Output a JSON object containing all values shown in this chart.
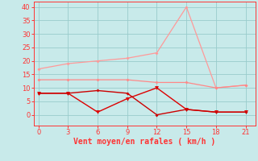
{
  "x": [
    0,
    3,
    6,
    9,
    12,
    15,
    18,
    21
  ],
  "line1_y": [
    17,
    19,
    20,
    21,
    23,
    40,
    10,
    11
  ],
  "line2_y": [
    13,
    13,
    13,
    13,
    12,
    12,
    10,
    11
  ],
  "line3_y": [
    8,
    8,
    1,
    6,
    10,
    2,
    1,
    1
  ],
  "line4_y": [
    8,
    8,
    9,
    8,
    0,
    2,
    1,
    1
  ],
  "line1_color": "#ff9999",
  "line2_color": "#ff8888",
  "line3_color": "#dd0000",
  "line4_color": "#cc0000",
  "bg_color": "#c8eaea",
  "grid_color": "#99cccc",
  "axis_color": "#ff3333",
  "tick_color": "#ff3333",
  "xlabel": "Vent moyen/en rafales ( km/h )",
  "xlim": [
    -0.5,
    22
  ],
  "ylim": [
    -4,
    42
  ],
  "yticks": [
    0,
    5,
    10,
    15,
    20,
    25,
    30,
    35,
    40
  ],
  "xticks": [
    0,
    3,
    6,
    9,
    12,
    15,
    18,
    21
  ]
}
